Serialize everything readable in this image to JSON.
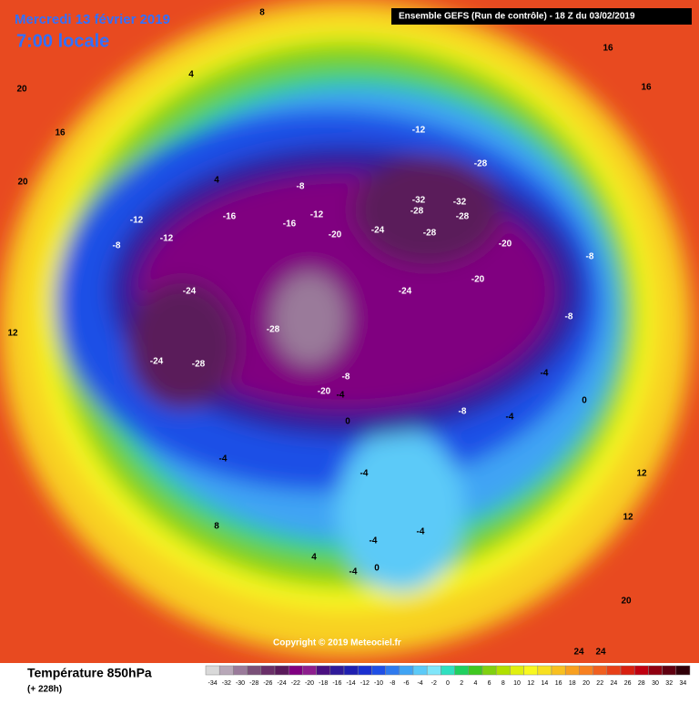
{
  "header": {
    "date": "Mercredi 13 février 2019",
    "time": "7:00 locale",
    "run": "Ensemble GEFS  (Run de contrôle)  - 18 Z du 03/02/2019"
  },
  "footer": {
    "title": "Température 850hPa",
    "lead": "(+ 228h)",
    "copyright": "Copyright © 2019 Meteociel.fr"
  },
  "legend": {
    "ticks": [
      -34,
      -32,
      -30,
      -28,
      -26,
      -24,
      -22,
      -20,
      -18,
      -16,
      -14,
      -12,
      -10,
      -8,
      -6,
      -4,
      -2,
      0,
      2,
      4,
      6,
      8,
      10,
      12,
      14,
      16,
      18,
      20,
      22,
      24,
      26,
      28,
      30,
      32,
      34
    ],
    "colors": [
      "#d9d9d9",
      "#b8a8b8",
      "#9a7a9a",
      "#7a5078",
      "#6a2f68",
      "#5a1a5a",
      "#800080",
      "#8e1e8e",
      "#4b0f80",
      "#2f1a9a",
      "#1f1fb0",
      "#1a2fd0",
      "#1f4fe6",
      "#2f7aee",
      "#40a4f4",
      "#5ccaf8",
      "#80e6fa",
      "#30e0c0",
      "#20d060",
      "#40c820",
      "#80d010",
      "#b0e000",
      "#e0f010",
      "#f8f820",
      "#f8e020",
      "#f8c020",
      "#f8a020",
      "#f88020",
      "#f06020",
      "#e84018",
      "#d82010",
      "#c00010",
      "#900010",
      "#600010",
      "#300008"
    ]
  },
  "contour_labels": [
    -12,
    -28,
    -32,
    -32,
    -28,
    -28,
    -28,
    -20,
    -24,
    -20,
    -20,
    -24,
    -24,
    -28,
    -24,
    -28,
    -20,
    -16,
    -12,
    -12,
    -12,
    -16,
    -8,
    -8,
    -8,
    -8,
    -8,
    -4,
    -4,
    -4,
    0,
    0,
    -4,
    -4,
    -8,
    -4,
    -4,
    -4,
    0,
    4,
    4,
    4,
    8,
    8,
    12,
    12,
    12,
    16,
    16,
    16,
    20,
    20,
    20,
    24,
    24
  ]
}
